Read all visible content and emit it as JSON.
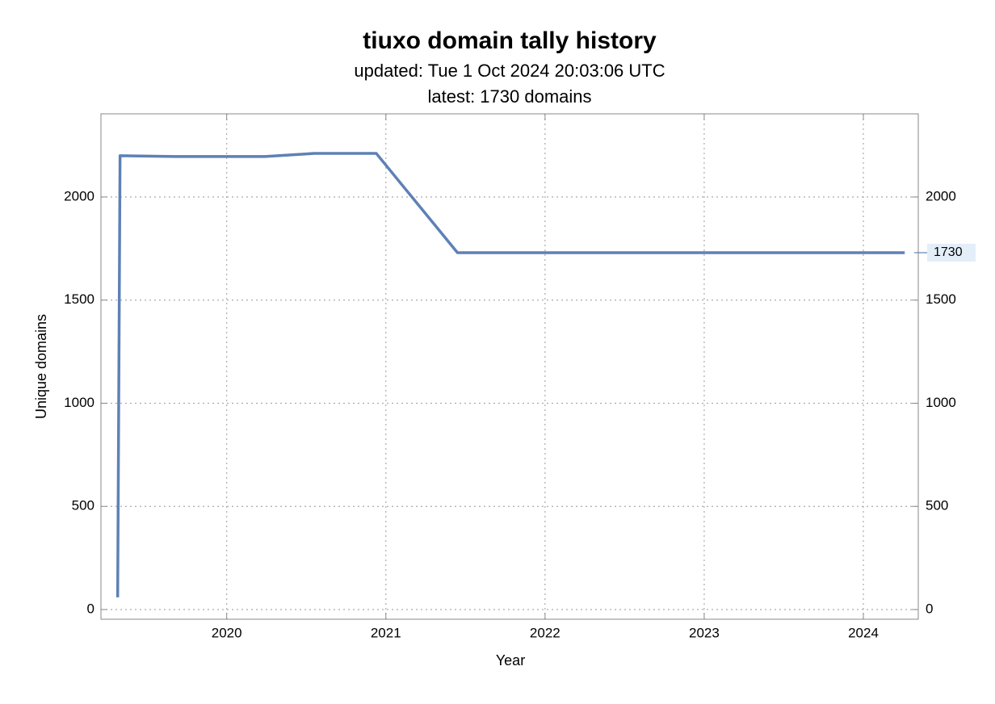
{
  "chart_data": {
    "type": "line",
    "title": "tiuxo domain tally history",
    "subtitle": "updated: Tue 1 Oct 2024 20:03:06 UTC",
    "subtitle2": "latest: 1730 domains",
    "x_label": "Year",
    "y_label": "Unique domains",
    "x": [
      2019.315,
      2019.33,
      2019.675,
      2020.24,
      2020.55,
      2020.94,
      2021.45,
      2024.26
    ],
    "series": [
      {
        "name": "domains",
        "color": "#5e81b5",
        "values": [
          59,
          2200,
          2196,
          2196,
          2211,
          2211,
          1730,
          1730
        ]
      }
    ],
    "end_label": 1730,
    "xlim": [
      2019.21,
      2024.345
    ],
    "ylim": [
      -47,
      2403
    ],
    "xticks": [
      2020,
      2021,
      2022,
      2023,
      2024
    ],
    "yticks": [
      0,
      500,
      1000,
      1500,
      2000
    ],
    "grid": true
  }
}
